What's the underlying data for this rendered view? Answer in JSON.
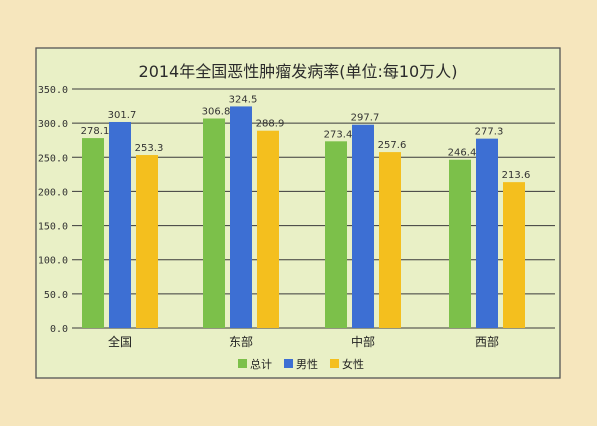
{
  "chart_data": {
    "type": "bar",
    "title": "2014年全国恶性肿瘤发病率(单位:每10万人)",
    "categories": [
      "全国",
      "东部",
      "中部",
      "西部"
    ],
    "series": [
      {
        "name": "总计",
        "color": "#7cc04a",
        "values": [
          278.1,
          306.8,
          273.4,
          246.4
        ],
        "labels": [
          "278.1",
          "306.8",
          "273.4",
          "246.4"
        ]
      },
      {
        "name": "男性",
        "color": "#3d6fd3",
        "values": [
          301.7,
          324.5,
          297.7,
          277.3
        ],
        "labels": [
          "301.7",
          "324.5",
          "297.7",
          "277.3"
        ]
      },
      {
        "name": "女性",
        "color": "#f4bf1e",
        "values": [
          253.3,
          288.9,
          257.6,
          213.6
        ],
        "labels": [
          "253.3",
          "288.9",
          "257.6",
          "213.6"
        ]
      }
    ],
    "yticks": [
      "0.0",
      "50.0",
      "100.0",
      "150.0",
      "200.0",
      "250.0",
      "300.0",
      "350.0"
    ],
    "ylim": [
      0,
      350
    ],
    "grid": true,
    "legend": "bottom"
  }
}
